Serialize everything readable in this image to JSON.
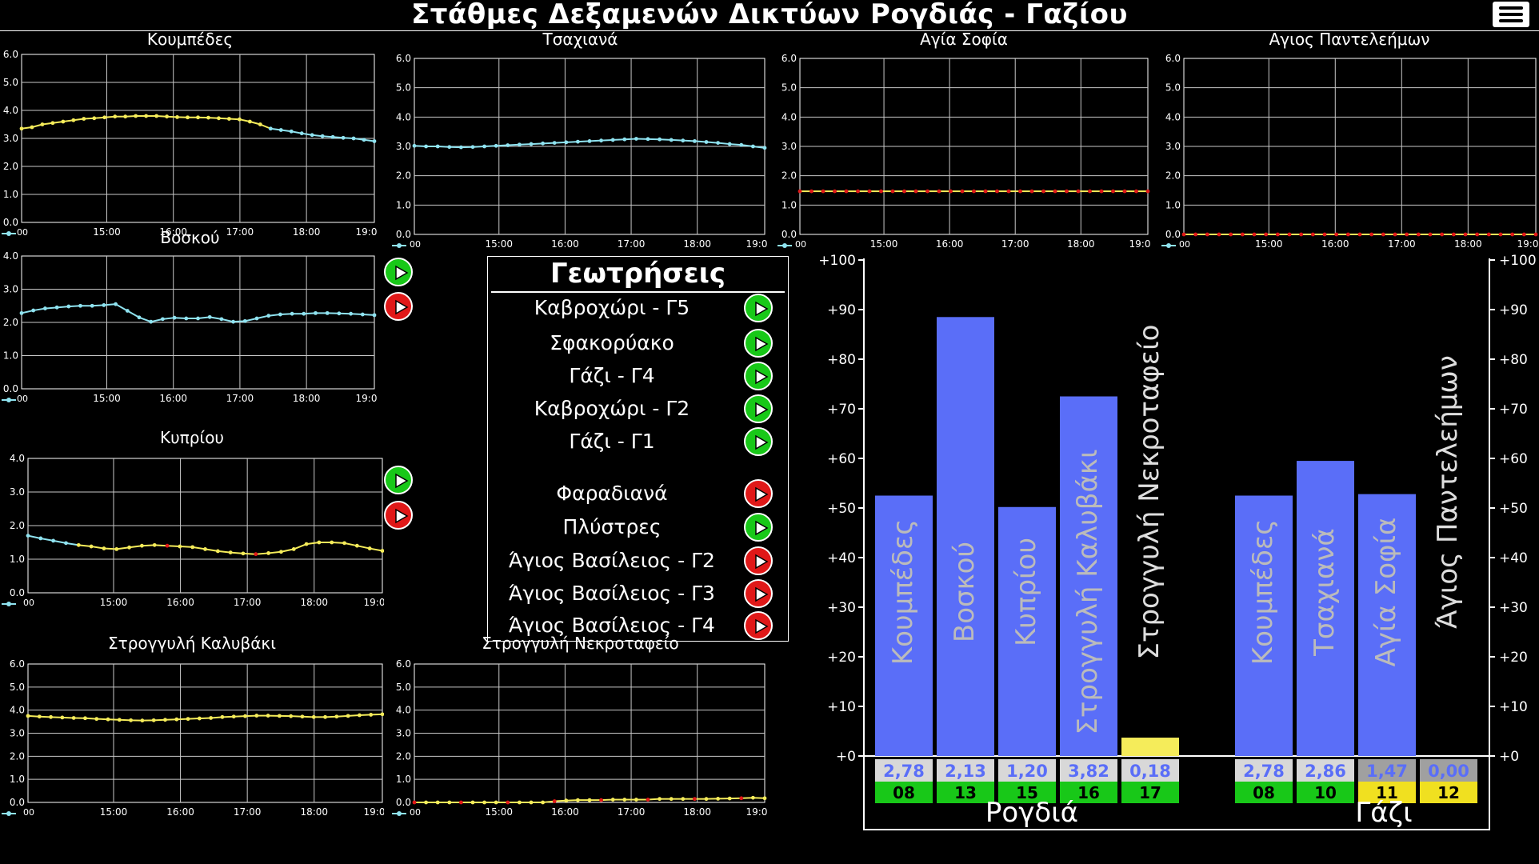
{
  "header": {
    "title": "Στάθμες Δεξαμενών Δικτύων Ρογδιάς - Γαζίου",
    "menu_icon": "hamburger-menu-icon"
  },
  "colors": {
    "cyan": "#8fe3f0",
    "yellow": "#f5ec5a",
    "red": "#e01818",
    "bar": "#5a6ef8",
    "green": "#18c818",
    "grid": "#c8c8c8",
    "badge_yellow": "#f0e020",
    "badge_gray": "#d8d8d8"
  },
  "time_axis": {
    "ticks": [
      "15:00",
      "16:00",
      "17:00",
      "18:00",
      "19:0"
    ],
    "start_label": "00"
  },
  "tanks": [
    {
      "id": "koumpedes",
      "title": "Κουμπέδες",
      "ymax": 6,
      "y_ticks": [
        "6.0",
        "5.0",
        "4.0",
        "3.0",
        "2.0",
        "1.0",
        "0.0"
      ],
      "color": "cyan_yellow",
      "values": [
        3.35,
        3.4,
        3.5,
        3.55,
        3.6,
        3.65,
        3.7,
        3.72,
        3.75,
        3.78,
        3.78,
        3.8,
        3.8,
        3.8,
        3.78,
        3.76,
        3.75,
        3.75,
        3.74,
        3.72,
        3.7,
        3.68,
        3.6,
        3.5,
        3.35,
        3.3,
        3.25,
        3.18,
        3.12,
        3.08,
        3.05,
        3.02,
        3.0,
        2.95,
        2.9
      ]
    },
    {
      "id": "tsaxiana",
      "title": "Τσαχιανά",
      "ymax": 6,
      "y_ticks": [
        "6.0",
        "5.0",
        "4.0",
        "3.0",
        "2.0",
        "1.0",
        "0.0"
      ],
      "color": "cyan",
      "values": [
        3.02,
        3.0,
        3.0,
        2.98,
        2.97,
        2.98,
        3.0,
        3.02,
        3.04,
        3.06,
        3.08,
        3.1,
        3.12,
        3.14,
        3.16,
        3.18,
        3.2,
        3.22,
        3.24,
        3.26,
        3.25,
        3.24,
        3.22,
        3.2,
        3.18,
        3.15,
        3.12,
        3.08,
        3.05,
        3.0,
        2.95
      ]
    },
    {
      "id": "agia_sofia_top",
      "title": "Αγία Σοφία",
      "ymax": 6,
      "y_ticks": [
        "6.0",
        "5.0",
        "4.0",
        "3.0",
        "2.0",
        "1.0",
        "0.0"
      ],
      "color": "yellow_red",
      "values": [
        1.47,
        1.47,
        1.47,
        1.47,
        1.47,
        1.47,
        1.47,
        1.47,
        1.47,
        1.47,
        1.47,
        1.47,
        1.47,
        1.47,
        1.47,
        1.47,
        1.47,
        1.47,
        1.47,
        1.47,
        1.47,
        1.47,
        1.47,
        1.47,
        1.47,
        1.47,
        1.47,
        1.47,
        1.47,
        1.47,
        1.47
      ]
    },
    {
      "id": "agios_panteleimon",
      "title": "Αγιος Παντελεήμων",
      "ymax": 6,
      "y_ticks": [
        "6.0",
        "5.0",
        "4.0",
        "3.0",
        "2.0",
        "1.0",
        "0.0"
      ],
      "color": "yellow_red",
      "values": [
        0.0,
        0.0,
        0.0,
        0.0,
        0.0,
        0.0,
        0.0,
        0.0,
        0.0,
        0.0,
        0.0,
        0.0,
        0.0,
        0.0,
        0.0,
        0.0,
        0.0,
        0.0,
        0.0,
        0.0,
        0.0,
        0.0,
        0.0,
        0.0,
        0.0,
        0.0,
        0.0,
        0.0,
        0.0,
        0.0,
        0.0
      ]
    },
    {
      "id": "voskou",
      "title": "Βοσκού",
      "ymax": 4,
      "y_ticks": [
        "4.0",
        "3.0",
        "2.0",
        "1.0",
        "0.0"
      ],
      "color": "cyan",
      "values": [
        2.28,
        2.36,
        2.42,
        2.45,
        2.48,
        2.5,
        2.5,
        2.52,
        2.55,
        2.35,
        2.15,
        2.02,
        2.1,
        2.14,
        2.12,
        2.12,
        2.16,
        2.1,
        2.02,
        2.04,
        2.12,
        2.2,
        2.24,
        2.26,
        2.26,
        2.28,
        2.28,
        2.27,
        2.26,
        2.24,
        2.22
      ]
    },
    {
      "id": "kypriou",
      "title": "Κυπρίου",
      "ymax": 4,
      "y_ticks": [
        "4.0",
        "3.0",
        "2.0",
        "1.0",
        "0.0"
      ],
      "color": "cyan_yellow",
      "values": [
        1.7,
        1.62,
        1.55,
        1.48,
        1.42,
        1.38,
        1.32,
        1.3,
        1.35,
        1.4,
        1.42,
        1.4,
        1.38,
        1.36,
        1.3,
        1.24,
        1.2,
        1.17,
        1.15,
        1.18,
        1.22,
        1.3,
        1.45,
        1.5,
        1.5,
        1.48,
        1.4,
        1.32,
        1.25
      ]
    },
    {
      "id": "stroggyli_kalyvaki",
      "title": "Στρογγυλή Καλυβάκι",
      "ymax": 6,
      "y_ticks": [
        "6.0",
        "5.0",
        "4.0",
        "3.0",
        "2.0",
        "1.0",
        "0.0"
      ],
      "color": "yellow",
      "values": [
        3.75,
        3.72,
        3.7,
        3.68,
        3.66,
        3.65,
        3.62,
        3.6,
        3.58,
        3.56,
        3.55,
        3.56,
        3.58,
        3.6,
        3.62,
        3.64,
        3.66,
        3.7,
        3.72,
        3.74,
        3.76,
        3.76,
        3.75,
        3.74,
        3.72,
        3.7,
        3.7,
        3.72,
        3.75,
        3.78,
        3.8,
        3.82
      ]
    },
    {
      "id": "stroggyli_nekrotafeio",
      "title": "Στρογγυλή Νεκροταφείο",
      "ymax": 6,
      "y_ticks": [
        "6.0",
        "5.0",
        "4.0",
        "3.0",
        "2.0",
        "1.0",
        "0.0"
      ],
      "color": "yellow_red_end",
      "values": [
        0.0,
        0.0,
        0.0,
        0.0,
        0.0,
        0.0,
        0.0,
        0.0,
        0.0,
        0.0,
        0.0,
        0.0,
        0.05,
        0.08,
        0.1,
        0.1,
        0.1,
        0.12,
        0.12,
        0.12,
        0.12,
        0.15,
        0.15,
        0.15,
        0.15,
        0.15,
        0.16,
        0.17,
        0.18,
        0.2,
        0.18
      ]
    }
  ],
  "side_buttons": [
    {
      "name": "voskou-pump-1-button",
      "state": "green"
    },
    {
      "name": "voskou-pump-2-button",
      "state": "red"
    },
    {
      "name": "kypriou-pump-1-button",
      "state": "green"
    },
    {
      "name": "kypriou-pump-2-button",
      "state": "red"
    }
  ],
  "geotriseis": {
    "title": "Γεωτρήσεις",
    "rows": [
      {
        "label": "Καβροχώρι - Γ5",
        "state": "green"
      },
      {
        "label": "Σφακορύακο",
        "state": "green"
      },
      {
        "label": "Γάζι - Γ4",
        "state": "green"
      },
      {
        "label": "Καβροχώρι - Γ2",
        "state": "green"
      },
      {
        "label": "Γάζι - Γ1",
        "state": "green"
      },
      {
        "label": "Φαραδιανά",
        "state": "red"
      },
      {
        "label": "Πλύστρες",
        "state": "green"
      },
      {
        "label": "Άγιος Βασίλειος - Γ2",
        "state": "red"
      },
      {
        "label": "Άγιος Βασίλειος - Γ3",
        "state": "red"
      },
      {
        "label": "Άγιος Βασίλειος - Γ4",
        "state": "red"
      }
    ]
  },
  "chart_data": {
    "type": "bar",
    "ylim": [
      0,
      100
    ],
    "y_ticks": [
      "+0",
      "+10",
      "+20",
      "+30",
      "+40",
      "+50",
      "+60",
      "+70",
      "+80",
      "+90",
      "+100"
    ],
    "groups": [
      {
        "name": "Ρογδιά",
        "bars": [
          {
            "label": "Κουμπέδες",
            "percent": 52.5,
            "level": "2,78",
            "id": "08",
            "id_color": "green"
          },
          {
            "label": "Βοσκού",
            "percent": 88.5,
            "level": "2,13",
            "id": "13",
            "id_color": "green"
          },
          {
            "label": "Κυπρίου",
            "percent": 50.2,
            "level": "1,20",
            "id": "15",
            "id_color": "green"
          },
          {
            "label": "Στρογγυλή Καλυβάκι",
            "percent": 72.5,
            "level": "3,82",
            "id": "16",
            "id_color": "green"
          },
          {
            "label": "Στρογγυλή Νεκροταφείο",
            "percent": 3.7,
            "level": "0,18",
            "id": "17",
            "id_color": "green"
          }
        ]
      },
      {
        "name": "Γάζι",
        "bars": [
          {
            "label": "Κουμπέδες",
            "percent": 52.5,
            "level": "2,78",
            "id": "08",
            "id_color": "green"
          },
          {
            "label": "Τσαχιανά",
            "percent": 59.5,
            "level": "2,86",
            "id": "10",
            "id_color": "green"
          },
          {
            "label": "Αγία Σοφία",
            "percent": 52.8,
            "level": "1,47",
            "id": "11",
            "id_color": "yellow"
          },
          {
            "label": "Άγιος Παντελεήμων",
            "percent": 0,
            "level": "0,00",
            "id": "12",
            "id_color": "yellow"
          }
        ]
      }
    ]
  }
}
